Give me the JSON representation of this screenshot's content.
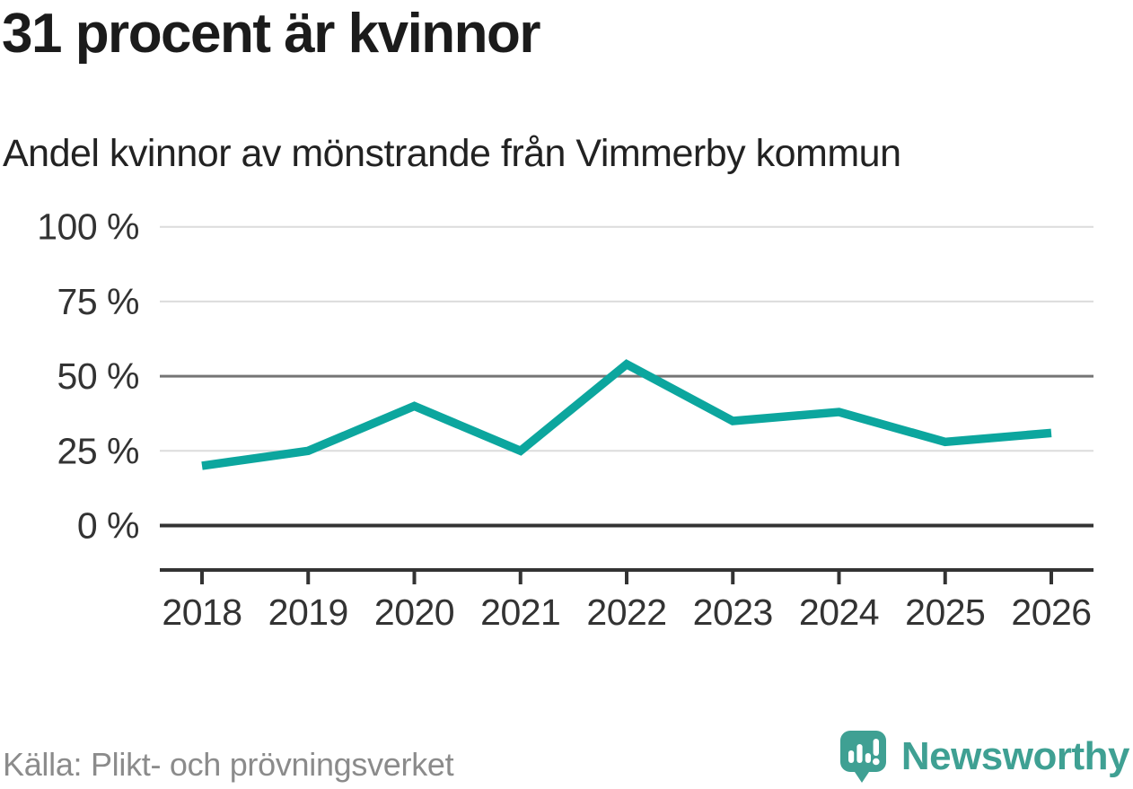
{
  "header": {
    "title": "31 procent är kvinnor",
    "subtitle": "Andel kvinnor av mönstrande från Vimmerby kommun"
  },
  "chart_data": {
    "type": "line",
    "title": "31 procent är kvinnor",
    "subtitle": "Andel kvinnor av mönstrande från Vimmerby kommun",
    "categories": [
      "2018",
      "2019",
      "2020",
      "2021",
      "2022",
      "2023",
      "2024",
      "2025",
      "2026"
    ],
    "values": [
      20,
      25,
      40,
      25,
      54,
      35,
      38,
      28,
      31
    ],
    "unit": "%",
    "ylim": [
      0,
      100
    ],
    "y_ticks": [
      0,
      25,
      50,
      75,
      100
    ],
    "y_tick_labels": [
      "0 %",
      "25 %",
      "50 %",
      "75 %",
      "100 %"
    ],
    "grid": "horizontal-only",
    "legend": "none",
    "line_color": "#0ca69e",
    "zero_line_color": "#333333",
    "mid_grid_color": "#757575",
    "light_grid_color": "#dcdcdc",
    "axis_color": "#333333"
  },
  "footer": {
    "source": "Källa: Plikt- och prövningsverket",
    "brand": "Newsworthy",
    "brand_color": "#3fa093"
  }
}
